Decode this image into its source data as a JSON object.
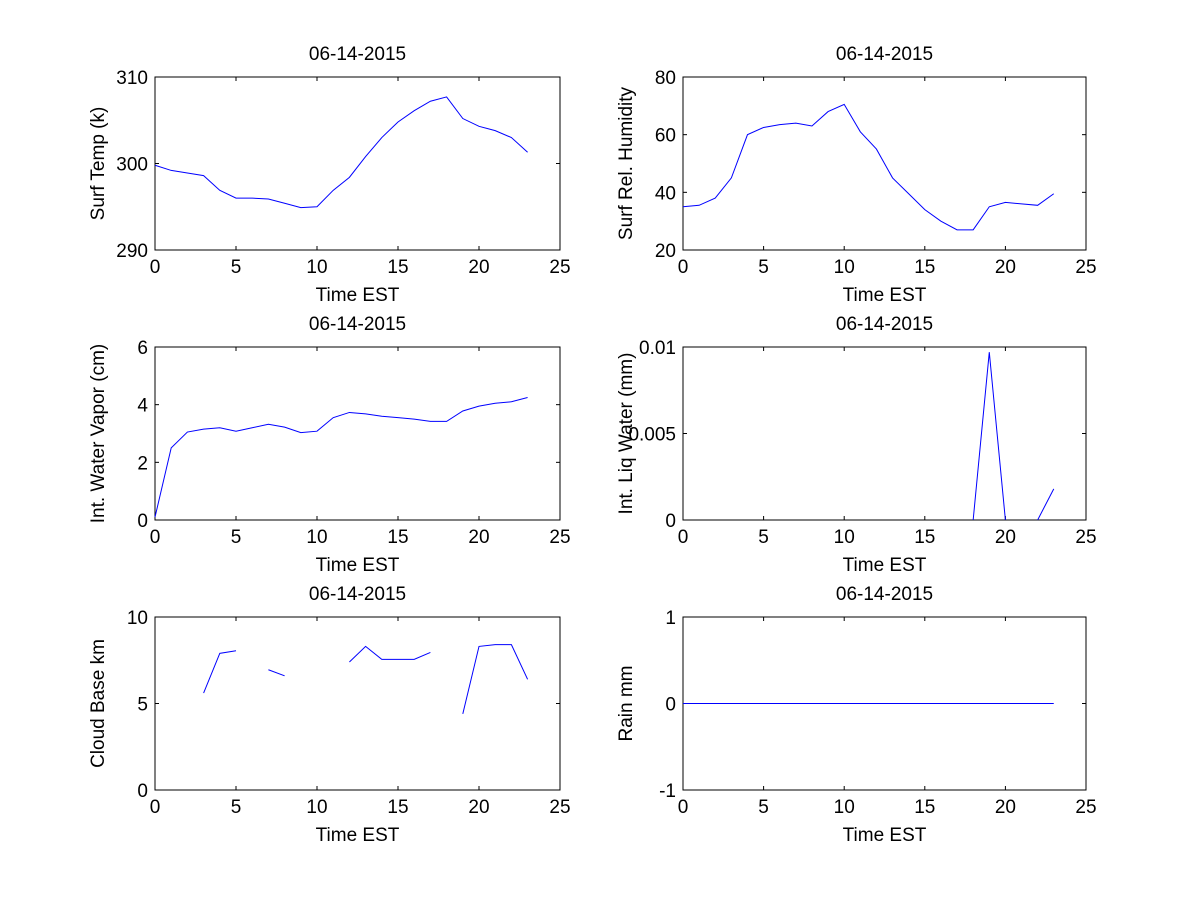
{
  "figure": {
    "background": "#ffffff"
  },
  "chart_data": [
    {
      "id": "surf-temp",
      "type": "line",
      "title": "06-14-2015",
      "xlabel": "Time EST",
      "ylabel": "Surf Temp (k)",
      "xlim": [
        0,
        25
      ],
      "ylim": [
        290,
        310
      ],
      "xticks": [
        0,
        5,
        10,
        15,
        20,
        25
      ],
      "yticks": [
        290,
        300,
        310
      ],
      "ytick_labels": [
        "290",
        "300",
        "310"
      ],
      "line_color": "#0000ff",
      "x": [
        0,
        1,
        2,
        3,
        4,
        5,
        6,
        7,
        8,
        9,
        10,
        11,
        12,
        13,
        14,
        15,
        16,
        17,
        18,
        19,
        20,
        21,
        22,
        23
      ],
      "y": [
        299.8,
        299.2,
        298.9,
        298.6,
        296.9,
        296.0,
        296.0,
        295.9,
        295.4,
        294.9,
        295.0,
        296.9,
        298.4,
        300.8,
        303.0,
        304.8,
        306.1,
        307.2,
        307.7,
        305.2,
        304.3,
        303.8,
        303.0,
        301.3
      ]
    },
    {
      "id": "surf-humidity",
      "type": "line",
      "title": "06-14-2015",
      "xlabel": "Time EST",
      "ylabel": "Surf Rel. Humidity",
      "xlim": [
        0,
        25
      ],
      "ylim": [
        20,
        80
      ],
      "xticks": [
        0,
        5,
        10,
        15,
        20,
        25
      ],
      "yticks": [
        20,
        40,
        60,
        80
      ],
      "ytick_labels": [
        "20",
        "40",
        "60",
        "80"
      ],
      "line_color": "#0000ff",
      "x": [
        0,
        1,
        2,
        3,
        4,
        5,
        6,
        7,
        8,
        9,
        10,
        11,
        12,
        13,
        14,
        15,
        16,
        17,
        18,
        19,
        20,
        21,
        22,
        23
      ],
      "y": [
        35,
        35.5,
        38,
        45,
        60,
        62.5,
        63.5,
        64,
        63,
        68,
        70.5,
        61,
        55,
        45,
        39.5,
        34,
        30,
        27,
        27,
        35,
        36.5,
        36,
        35.5,
        39.5
      ]
    },
    {
      "id": "int-water-vapor",
      "type": "line",
      "title": "06-14-2015",
      "xlabel": "Time EST",
      "ylabel": "Int. Water Vapor (cm)",
      "xlim": [
        0,
        25
      ],
      "ylim": [
        0,
        6
      ],
      "xticks": [
        0,
        5,
        10,
        15,
        20,
        25
      ],
      "yticks": [
        0,
        2,
        4,
        6
      ],
      "ytick_labels": [
        "0",
        "2",
        "4",
        "6"
      ],
      "line_color": "#0000ff",
      "x": [
        0,
        1,
        2,
        3,
        4,
        5,
        6,
        7,
        8,
        9,
        10,
        11,
        12,
        13,
        14,
        15,
        16,
        17,
        18,
        19,
        20,
        21,
        22,
        23
      ],
      "y": [
        0.1,
        2.5,
        3.05,
        3.15,
        3.2,
        3.08,
        3.2,
        3.32,
        3.22,
        3.03,
        3.08,
        3.55,
        3.73,
        3.68,
        3.6,
        3.55,
        3.5,
        3.42,
        3.42,
        3.78,
        3.95,
        4.05,
        4.1,
        4.25
      ]
    },
    {
      "id": "int-liq-water",
      "type": "line",
      "title": "06-14-2015",
      "xlabel": "Time EST",
      "ylabel": "Int. Liq Water (mm)",
      "xlim": [
        0,
        25
      ],
      "ylim": [
        0,
        0.01
      ],
      "xticks": [
        0,
        5,
        10,
        15,
        20,
        25
      ],
      "yticks": [
        0,
        0.005,
        0.01
      ],
      "ytick_labels": [
        "0",
        "0.005",
        "0.01"
      ],
      "line_color": "#0000ff",
      "x": [
        18,
        19,
        20,
        21,
        22,
        23
      ],
      "y": [
        0,
        0.0097,
        0,
        null,
        0,
        0.0018
      ]
    },
    {
      "id": "cloud-base",
      "type": "line",
      "title": "06-14-2015",
      "xlabel": "Time EST",
      "ylabel": "Cloud Base km",
      "xlim": [
        0,
        25
      ],
      "ylim": [
        0,
        10
      ],
      "xticks": [
        0,
        5,
        10,
        15,
        20,
        25
      ],
      "yticks": [
        0,
        5,
        10
      ],
      "ytick_labels": [
        "0",
        "5",
        "10"
      ],
      "line_color": "#0000ff",
      "x": [
        3,
        4,
        5,
        6,
        7,
        8,
        9,
        10,
        11,
        12,
        13,
        14,
        15,
        16,
        17,
        18,
        19,
        20,
        21,
        22,
        23
      ],
      "y": [
        5.6,
        7.9,
        8.05,
        null,
        6.95,
        6.6,
        null,
        null,
        null,
        7.4,
        8.3,
        7.55,
        7.55,
        7.55,
        7.95,
        null,
        4.4,
        8.3,
        8.4,
        8.4,
        6.4
      ]
    },
    {
      "id": "rain",
      "type": "line",
      "title": "06-14-2015",
      "xlabel": "Time EST",
      "ylabel": "Rain mm",
      "xlim": [
        0,
        25
      ],
      "ylim": [
        -1,
        1
      ],
      "xticks": [
        0,
        5,
        10,
        15,
        20,
        25
      ],
      "yticks": [
        -1,
        0,
        1
      ],
      "ytick_labels": [
        "-1",
        "0",
        "1"
      ],
      "line_color": "#0000ff",
      "x": [
        0,
        23
      ],
      "y": [
        0,
        0
      ]
    }
  ]
}
